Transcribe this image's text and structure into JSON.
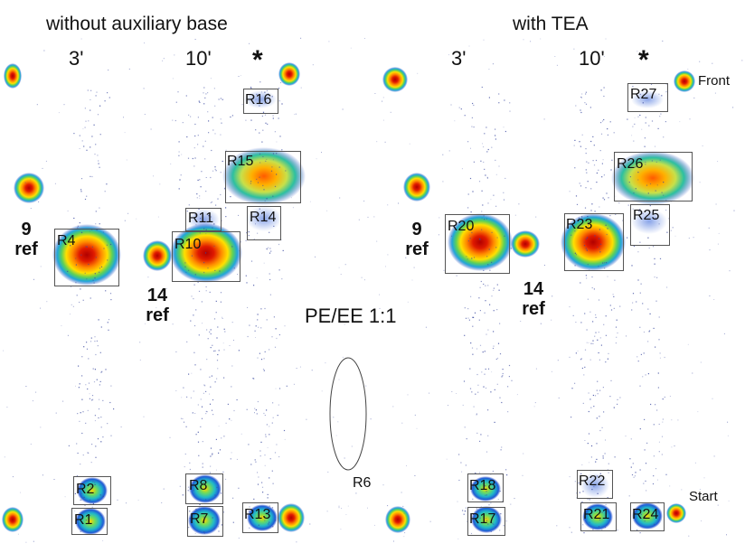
{
  "headers": {
    "left": "without auxiliary base",
    "right": "with TEA"
  },
  "columns": {
    "left_3": "3'",
    "left_10": "10'",
    "left_star": "*",
    "right_3": "3'",
    "right_10": "10'",
    "right_star": "*"
  },
  "refs": {
    "r9_left_num": "9",
    "r9_left_txt": "ref",
    "r14_left_num": "14",
    "r14_left_txt": "ref",
    "r9_right_num": "9",
    "r9_right_txt": "ref",
    "r14_right_num": "14",
    "r14_right_txt": "ref"
  },
  "solvent": "PE/EE 1:1",
  "markers": {
    "front": "Front",
    "start": "Start"
  },
  "regions": {
    "R1": "R1",
    "R2": "R2",
    "R4": "R4",
    "R6": "R6",
    "R7": "R7",
    "R8": "R8",
    "R10": "R10",
    "R11": "R11",
    "R13": "R13",
    "R14": "R14",
    "R15": "R15",
    "R16": "R16",
    "R17": "R17",
    "R18": "R18",
    "R20": "R20",
    "R21": "R21",
    "R22": "R22",
    "R23": "R23",
    "R24": "R24",
    "R25": "R25",
    "R26": "R26",
    "R27": "R27"
  },
  "colors": {
    "hot": "#c00000",
    "warm": "#ff8c00",
    "mid": "#ffe600",
    "cool": "#27c26b",
    "cold": "#1f5bd6",
    "speck": "#3b4aa0"
  }
}
